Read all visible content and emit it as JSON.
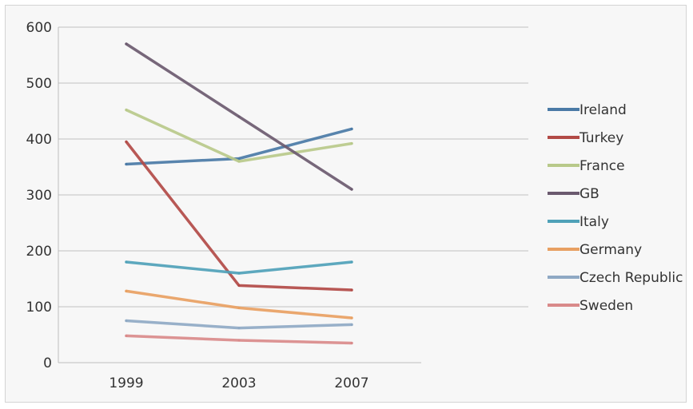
{
  "chart_data": {
    "type": "line",
    "title": "",
    "xlabel": "",
    "ylabel": "",
    "categories": [
      "1999",
      "2003",
      "2007"
    ],
    "ylim": [
      0,
      600
    ],
    "yticks": [
      "0",
      "100",
      "200",
      "300",
      "400",
      "500",
      "600"
    ],
    "grid": "horizontal",
    "legend_position": "right",
    "series": [
      {
        "name": "Ireland",
        "values": [
          355,
          365,
          418
        ],
        "color": "#4a7aa6"
      },
      {
        "name": "Turkey",
        "values": [
          395,
          138,
          130
        ],
        "color": "#b24a46"
      },
      {
        "name": "France",
        "values": [
          452,
          360,
          392
        ],
        "color": "#b8c98a"
      },
      {
        "name": "GB",
        "values": [
          570,
          440,
          310
        ],
        "color": "#6b5a6f"
      },
      {
        "name": "Italy",
        "values": [
          180,
          160,
          180
        ],
        "color": "#4fa1b8"
      },
      {
        "name": "Germany",
        "values": [
          128,
          98,
          80
        ],
        "color": "#e8a062"
      },
      {
        "name": "Czech Republic",
        "values": [
          75,
          62,
          68
        ],
        "color": "#8fa9c4"
      },
      {
        "name": "Sweden",
        "values": [
          48,
          40,
          35
        ],
        "color": "#d98a8a"
      }
    ]
  }
}
